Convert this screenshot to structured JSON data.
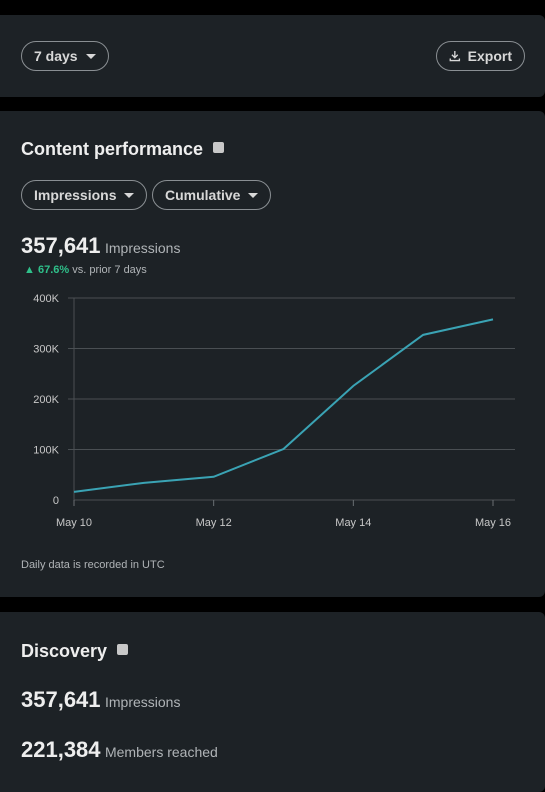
{
  "toolbar": {
    "range": "7 days",
    "export": "Export"
  },
  "content_performance": {
    "title": "Content performance",
    "metric_filter": "Impressions",
    "mode_filter": "Cumulative",
    "total": "357,641",
    "total_label": "Impressions",
    "change": "67.6%",
    "change_label": "vs. prior 7 days",
    "footnote": "Daily data is recorded in UTC"
  },
  "chart_data": {
    "type": "line",
    "categories": [
      "May 10",
      null,
      "May 12",
      null,
      "May 14",
      null,
      "May 16"
    ],
    "values": [
      16000,
      34000,
      46000,
      101000,
      226000,
      327000,
      357641
    ],
    "color": "#3aa3b4",
    "ylim": [
      0,
      400000
    ],
    "yticks": [
      0,
      {
        "value": 100000,
        "label": "100K"
      },
      {
        "value": 200000,
        "label": "200K"
      },
      {
        "value": 300000,
        "label": "300K"
      },
      {
        "value": 400000,
        "label": "400K"
      }
    ],
    "grid": true
  },
  "discovery": {
    "title": "Discovery",
    "metrics": [
      {
        "value": "357,641",
        "label": "Impressions"
      },
      {
        "value": "221,384",
        "label": "Members reached"
      }
    ]
  }
}
